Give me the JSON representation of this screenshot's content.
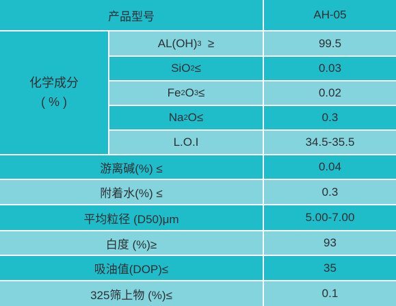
{
  "header": {
    "label": "产品型号",
    "value": "AH-05"
  },
  "chemical_group": {
    "line1": "化学成分",
    "line2": "( % )"
  },
  "chemical_rows": [
    {
      "value": "99.5"
    },
    {
      "value": "0.03"
    },
    {
      "value": "0.02"
    },
    {
      "value": "0.3"
    },
    {
      "label": "L.O.I",
      "value": "34.5-35.5"
    }
  ],
  "rows": [
    {
      "label": "游离碱(%) ≤",
      "value": "0.04"
    },
    {
      "label": "附着水(%) ≤",
      "value": "0.3"
    },
    {
      "label": "平均粒径 (D50)μm",
      "value": "5.00-7.00"
    },
    {
      "label": "白度  (%)≥",
      "value": "93"
    },
    {
      "label": "吸油值(DOP)≤",
      "value": "35"
    },
    {
      "label": "325筛上物  (%)≤",
      "value": "0.1"
    }
  ],
  "colors": {
    "dark": "#1fbcc9",
    "light": "#83d4dc",
    "text": "#2c2f33",
    "gap": "#ffffff"
  }
}
